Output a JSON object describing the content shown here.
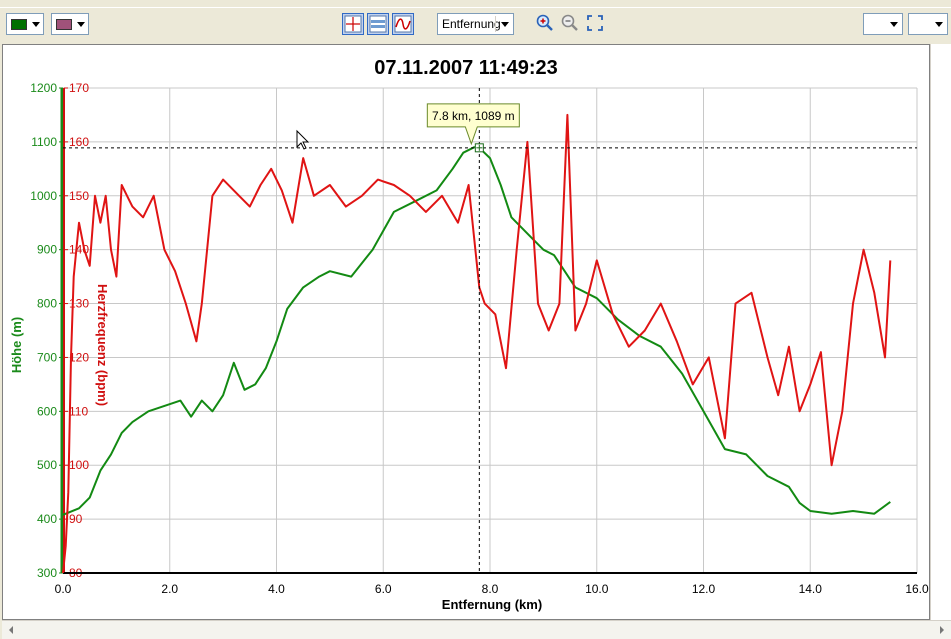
{
  "toolbar": {
    "color1": "#007000",
    "color2": "#a0527a",
    "tools": [
      "crosshair-icon",
      "bands-icon",
      "curve-icon"
    ],
    "x_axis_select": "Entfernung",
    "zoom_tools": [
      "zoom-in-icon",
      "zoom-out-icon",
      "zoom-fit-icon"
    ]
  },
  "cursor_readout": "7.8 km, 1089 m",
  "chart_data": {
    "type": "line",
    "title": "07.11.2007 11:49:23",
    "xlabel": "Entfernung (km)",
    "ylabel": "Höhe (m)",
    "y2label": "Herzfrequenz (bpm)",
    "xlim": [
      0,
      16
    ],
    "ylim": [
      300,
      1200
    ],
    "y2lim": [
      80,
      170
    ],
    "xticks": [
      "0.0",
      "2.0",
      "4.0",
      "6.0",
      "8.0",
      "10.0",
      "12.0",
      "14.0",
      "16.0"
    ],
    "yticks": [
      "300",
      "400",
      "500",
      "600",
      "700",
      "800",
      "900",
      "1000",
      "1100",
      "1200"
    ],
    "y2ticks": [
      "80",
      "90",
      "100",
      "110",
      "120",
      "130",
      "140",
      "150",
      "160",
      "170"
    ],
    "grid": true,
    "cursor": {
      "x": 7.8,
      "y": 1089
    },
    "series": [
      {
        "name": "Höhe (m)",
        "axis": "left",
        "color": "#138a13",
        "x": [
          0.0,
          0.3,
          0.5,
          0.7,
          0.9,
          1.1,
          1.3,
          1.6,
          1.9,
          2.2,
          2.4,
          2.6,
          2.8,
          3.0,
          3.2,
          3.4,
          3.6,
          3.8,
          4.0,
          4.2,
          4.5,
          4.8,
          5.0,
          5.4,
          5.8,
          6.2,
          6.6,
          7.0,
          7.3,
          7.5,
          7.7,
          7.8,
          8.0,
          8.2,
          8.4,
          8.6,
          8.8,
          9.0,
          9.2,
          9.4,
          9.6,
          10.0,
          10.4,
          10.8,
          11.2,
          11.6,
          12.0,
          12.4,
          12.8,
          13.2,
          13.6,
          13.8,
          14.0,
          14.4,
          14.8,
          15.2,
          15.5
        ],
        "y": [
          408,
          420,
          440,
          490,
          520,
          560,
          580,
          600,
          610,
          620,
          590,
          620,
          600,
          630,
          690,
          640,
          650,
          680,
          730,
          790,
          830,
          850,
          860,
          850,
          900,
          970,
          990,
          1010,
          1050,
          1080,
          1090,
          1089,
          1070,
          1020,
          960,
          940,
          920,
          900,
          890,
          860,
          830,
          810,
          770,
          740,
          720,
          670,
          600,
          530,
          520,
          480,
          460,
          430,
          415,
          410,
          415,
          410,
          432
        ]
      },
      {
        "name": "Herzfrequenz (bpm)",
        "axis": "right",
        "color": "#e01414",
        "x": [
          0.0,
          0.05,
          0.1,
          0.15,
          0.2,
          0.3,
          0.4,
          0.5,
          0.6,
          0.7,
          0.8,
          0.9,
          1.0,
          1.1,
          1.3,
          1.5,
          1.7,
          1.9,
          2.1,
          2.3,
          2.5,
          2.6,
          2.8,
          3.0,
          3.3,
          3.5,
          3.7,
          3.9,
          4.1,
          4.3,
          4.5,
          4.7,
          5.0,
          5.3,
          5.6,
          5.9,
          6.2,
          6.5,
          6.8,
          7.1,
          7.4,
          7.6,
          7.8,
          7.9,
          8.1,
          8.3,
          8.5,
          8.7,
          8.9,
          9.1,
          9.3,
          9.45,
          9.6,
          9.8,
          10.0,
          10.3,
          10.6,
          10.9,
          11.2,
          11.5,
          11.8,
          12.1,
          12.4,
          12.6,
          12.9,
          13.2,
          13.4,
          13.6,
          13.8,
          14.0,
          14.2,
          14.4,
          14.6,
          14.8,
          15.0,
          15.2,
          15.4,
          15.5
        ],
        "y": [
          80,
          85,
          95,
          120,
          135,
          145,
          140,
          137,
          150,
          145,
          150,
          140,
          135,
          152,
          148,
          146,
          150,
          140,
          136,
          130,
          123,
          130,
          150,
          153,
          150,
          148,
          152,
          155,
          151,
          145,
          157,
          150,
          152,
          148,
          150,
          153,
          152,
          150,
          147,
          150,
          145,
          152,
          133,
          130,
          128,
          118,
          140,
          160,
          130,
          125,
          130,
          165,
          125,
          130,
          138,
          128,
          122,
          125,
          130,
          123,
          115,
          120,
          105,
          130,
          132,
          120,
          113,
          122,
          110,
          115,
          121,
          100,
          110,
          130,
          140,
          132,
          120,
          138
        ]
      }
    ]
  }
}
